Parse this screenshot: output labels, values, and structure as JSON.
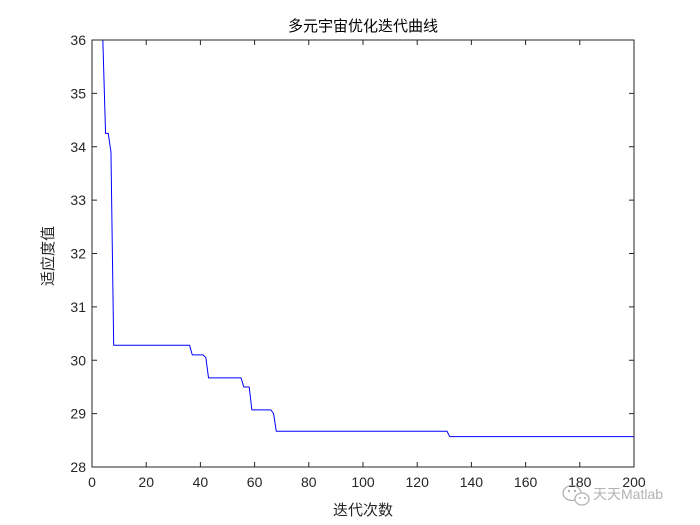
{
  "chart_data": {
    "type": "line",
    "title": "多元宇宙优化迭代曲线",
    "xlabel": "迭代次数",
    "ylabel": "适应度值",
    "xlim": [
      0,
      200
    ],
    "ylim": [
      28,
      36
    ],
    "xticks": [
      0,
      20,
      40,
      60,
      80,
      100,
      120,
      140,
      160,
      180,
      200
    ],
    "yticks": [
      28,
      29,
      30,
      31,
      32,
      33,
      34,
      35,
      36
    ],
    "grid": false,
    "line_color": "#0000ff",
    "series": [
      {
        "x": [
          1,
          4,
          5,
          6,
          7,
          8,
          9,
          36,
          37,
          41,
          42,
          43,
          55,
          56,
          57,
          58,
          59,
          66,
          67,
          68,
          131,
          132,
          200
        ],
        "y": [
          36.0,
          36.0,
          34.25,
          34.25,
          33.9,
          30.28,
          30.28,
          30.28,
          30.1,
          30.1,
          30.05,
          29.67,
          29.67,
          29.5,
          29.5,
          29.5,
          29.07,
          29.07,
          29.0,
          28.67,
          28.67,
          28.57,
          28.57
        ]
      }
    ]
  },
  "watermark": {
    "text": "天天Matlab",
    "icon": "wechat-icon"
  }
}
